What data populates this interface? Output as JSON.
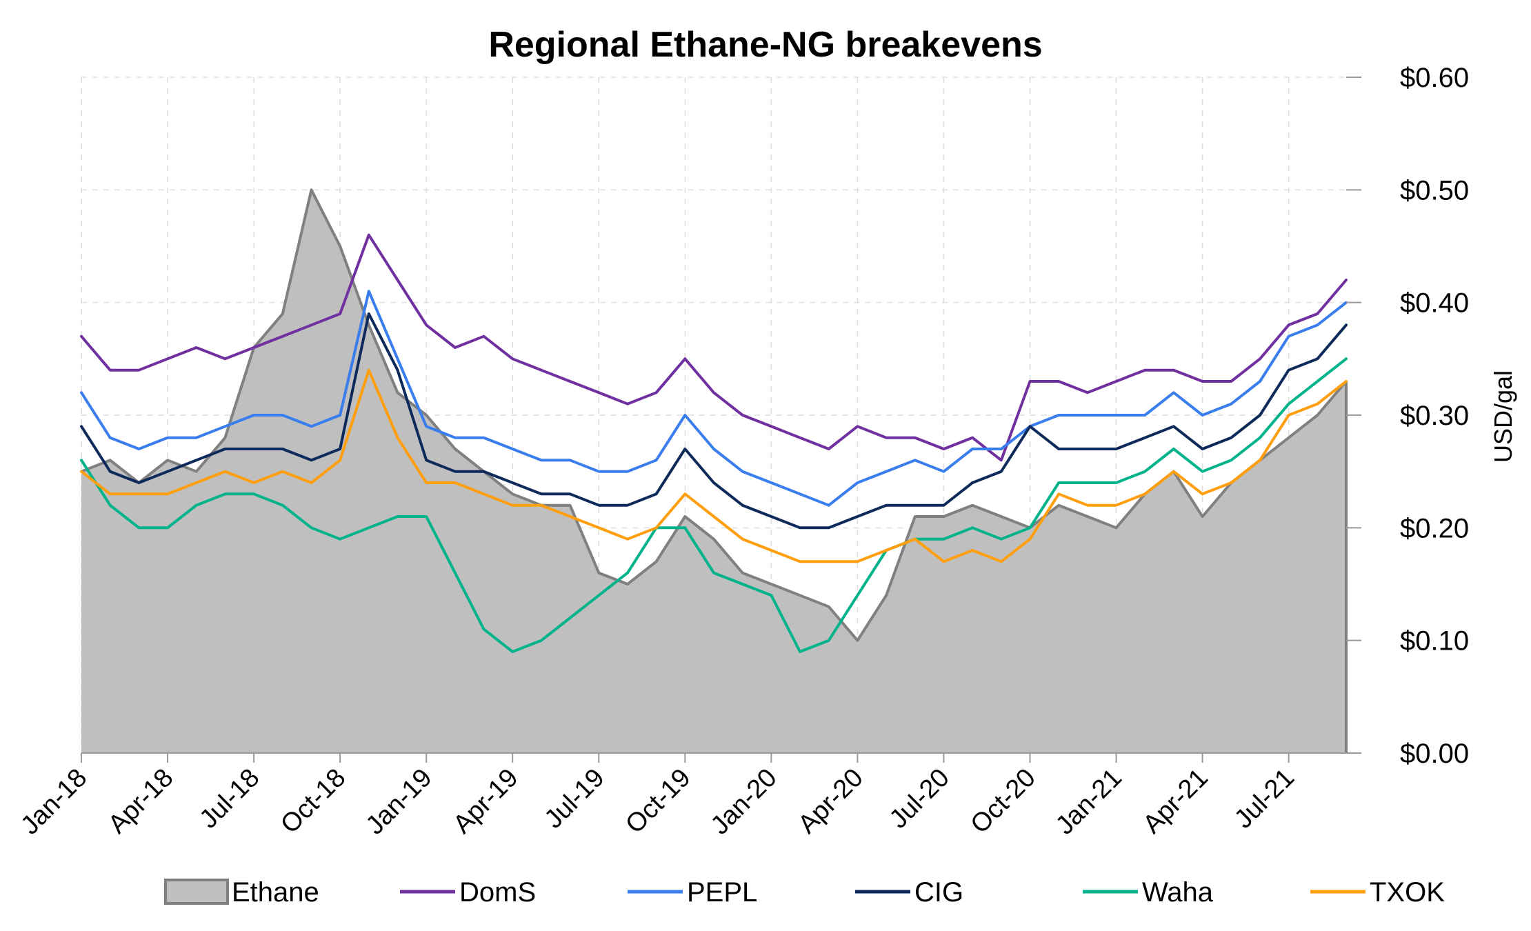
{
  "chart_data": {
    "type": "line",
    "title": "Regional Ethane-NG breakevens",
    "xlabel": "",
    "ylabel": "USD/gal",
    "ylim": [
      0,
      0.6
    ],
    "yticks": [
      0.0,
      0.1,
      0.2,
      0.3,
      0.4,
      0.5,
      0.6
    ],
    "ytick_labels": [
      "$0.00",
      "$0.10",
      "$0.20",
      "$0.30",
      "$0.40",
      "$0.50",
      "$0.60"
    ],
    "y_axis_side": "right",
    "x_axis_type": "date",
    "xlim": [
      "2018-01",
      "2021-09"
    ],
    "xticks": [
      "2018-01",
      "2018-04",
      "2018-07",
      "2018-10",
      "2019-01",
      "2019-04",
      "2019-07",
      "2019-10",
      "2020-01",
      "2020-04",
      "2020-07",
      "2020-10",
      "2021-01",
      "2021-04",
      "2021-07"
    ],
    "xtick_labels": [
      "Jan-18",
      "Apr-18",
      "Jul-18",
      "Oct-18",
      "Jan-19",
      "Apr-19",
      "Jul-19",
      "Oct-19",
      "Jan-20",
      "Apr-20",
      "Jul-20",
      "Oct-20",
      "Jan-21",
      "Apr-21",
      "Jul-21"
    ],
    "grid": true,
    "legend_position": "bottom",
    "x": [
      "2018-01",
      "2018-02",
      "2018-03",
      "2018-04",
      "2018-05",
      "2018-06",
      "2018-07",
      "2018-08",
      "2018-09",
      "2018-10",
      "2018-11",
      "2018-12",
      "2019-01",
      "2019-02",
      "2019-03",
      "2019-04",
      "2019-05",
      "2019-06",
      "2019-07",
      "2019-08",
      "2019-09",
      "2019-10",
      "2019-11",
      "2019-12",
      "2020-01",
      "2020-02",
      "2020-03",
      "2020-04",
      "2020-05",
      "2020-06",
      "2020-07",
      "2020-08",
      "2020-09",
      "2020-10",
      "2020-11",
      "2020-12",
      "2021-01",
      "2021-02",
      "2021-03",
      "2021-04",
      "2021-05",
      "2021-06",
      "2021-07",
      "2021-08",
      "2021-09"
    ],
    "series": [
      {
        "name": "Ethane",
        "kind": "area",
        "color": "#bfbfbf",
        "stroke": "#808080",
        "values": [
          0.25,
          0.26,
          0.24,
          0.26,
          0.25,
          0.28,
          0.36,
          0.39,
          0.5,
          0.45,
          0.38,
          0.32,
          0.3,
          0.27,
          0.25,
          0.23,
          0.22,
          0.22,
          0.16,
          0.15,
          0.17,
          0.21,
          0.19,
          0.16,
          0.15,
          0.14,
          0.13,
          0.1,
          0.14,
          0.21,
          0.21,
          0.22,
          0.21,
          0.2,
          0.22,
          0.21,
          0.2,
          0.23,
          0.25,
          0.21,
          0.24,
          0.26,
          0.28,
          0.3,
          0.33
        ]
      },
      {
        "name": "DomS",
        "kind": "line",
        "color": "#7030a0",
        "values": [
          0.37,
          0.34,
          0.34,
          0.35,
          0.36,
          0.35,
          0.36,
          0.37,
          0.38,
          0.39,
          0.46,
          0.42,
          0.38,
          0.36,
          0.37,
          0.35,
          0.34,
          0.33,
          0.32,
          0.31,
          0.32,
          0.35,
          0.32,
          0.3,
          0.29,
          0.28,
          0.27,
          0.29,
          0.28,
          0.28,
          0.27,
          0.28,
          0.26,
          0.33,
          0.33,
          0.32,
          0.33,
          0.34,
          0.34,
          0.33,
          0.33,
          0.35,
          0.38,
          0.39,
          0.42
        ]
      },
      {
        "name": "PEPL",
        "kind": "line",
        "color": "#3a7ded",
        "values": [
          0.32,
          0.28,
          0.27,
          0.28,
          0.28,
          0.29,
          0.3,
          0.3,
          0.29,
          0.3,
          0.41,
          0.35,
          0.29,
          0.28,
          0.28,
          0.27,
          0.26,
          0.26,
          0.25,
          0.25,
          0.26,
          0.3,
          0.27,
          0.25,
          0.24,
          0.23,
          0.22,
          0.24,
          0.25,
          0.26,
          0.25,
          0.27,
          0.27,
          0.29,
          0.3,
          0.3,
          0.3,
          0.3,
          0.32,
          0.3,
          0.31,
          0.33,
          0.37,
          0.38,
          0.4
        ]
      },
      {
        "name": "CIG",
        "kind": "line",
        "color": "#0e2a5a",
        "values": [
          0.29,
          0.25,
          0.24,
          0.25,
          0.26,
          0.27,
          0.27,
          0.27,
          0.26,
          0.27,
          0.39,
          0.34,
          0.26,
          0.25,
          0.25,
          0.24,
          0.23,
          0.23,
          0.22,
          0.22,
          0.23,
          0.27,
          0.24,
          0.22,
          0.21,
          0.2,
          0.2,
          0.21,
          0.22,
          0.22,
          0.22,
          0.24,
          0.25,
          0.29,
          0.27,
          0.27,
          0.27,
          0.28,
          0.29,
          0.27,
          0.28,
          0.3,
          0.34,
          0.35,
          0.38
        ]
      },
      {
        "name": "Waha",
        "kind": "line",
        "color": "#00b38a",
        "values": [
          0.26,
          0.22,
          0.2,
          0.2,
          0.22,
          0.23,
          0.23,
          0.22,
          0.2,
          0.19,
          0.2,
          0.21,
          0.21,
          0.16,
          0.11,
          0.09,
          0.1,
          0.12,
          0.14,
          0.16,
          0.2,
          0.2,
          0.16,
          0.15,
          0.14,
          0.09,
          0.1,
          0.14,
          0.18,
          0.19,
          0.19,
          0.2,
          0.19,
          0.2,
          0.24,
          0.24,
          0.24,
          0.25,
          0.27,
          0.25,
          0.26,
          0.28,
          0.31,
          0.33,
          0.35
        ]
      },
      {
        "name": "TXOK",
        "kind": "line",
        "color": "#ff9e0f",
        "values": [
          0.25,
          0.23,
          0.23,
          0.23,
          0.24,
          0.25,
          0.24,
          0.25,
          0.24,
          0.26,
          0.34,
          0.28,
          0.24,
          0.24,
          0.23,
          0.22,
          0.22,
          0.21,
          0.2,
          0.19,
          0.2,
          0.23,
          0.21,
          0.19,
          0.18,
          0.17,
          0.17,
          0.17,
          0.18,
          0.19,
          0.17,
          0.18,
          0.17,
          0.19,
          0.23,
          0.22,
          0.22,
          0.23,
          0.25,
          0.23,
          0.24,
          0.26,
          0.3,
          0.31,
          0.33
        ]
      }
    ]
  }
}
